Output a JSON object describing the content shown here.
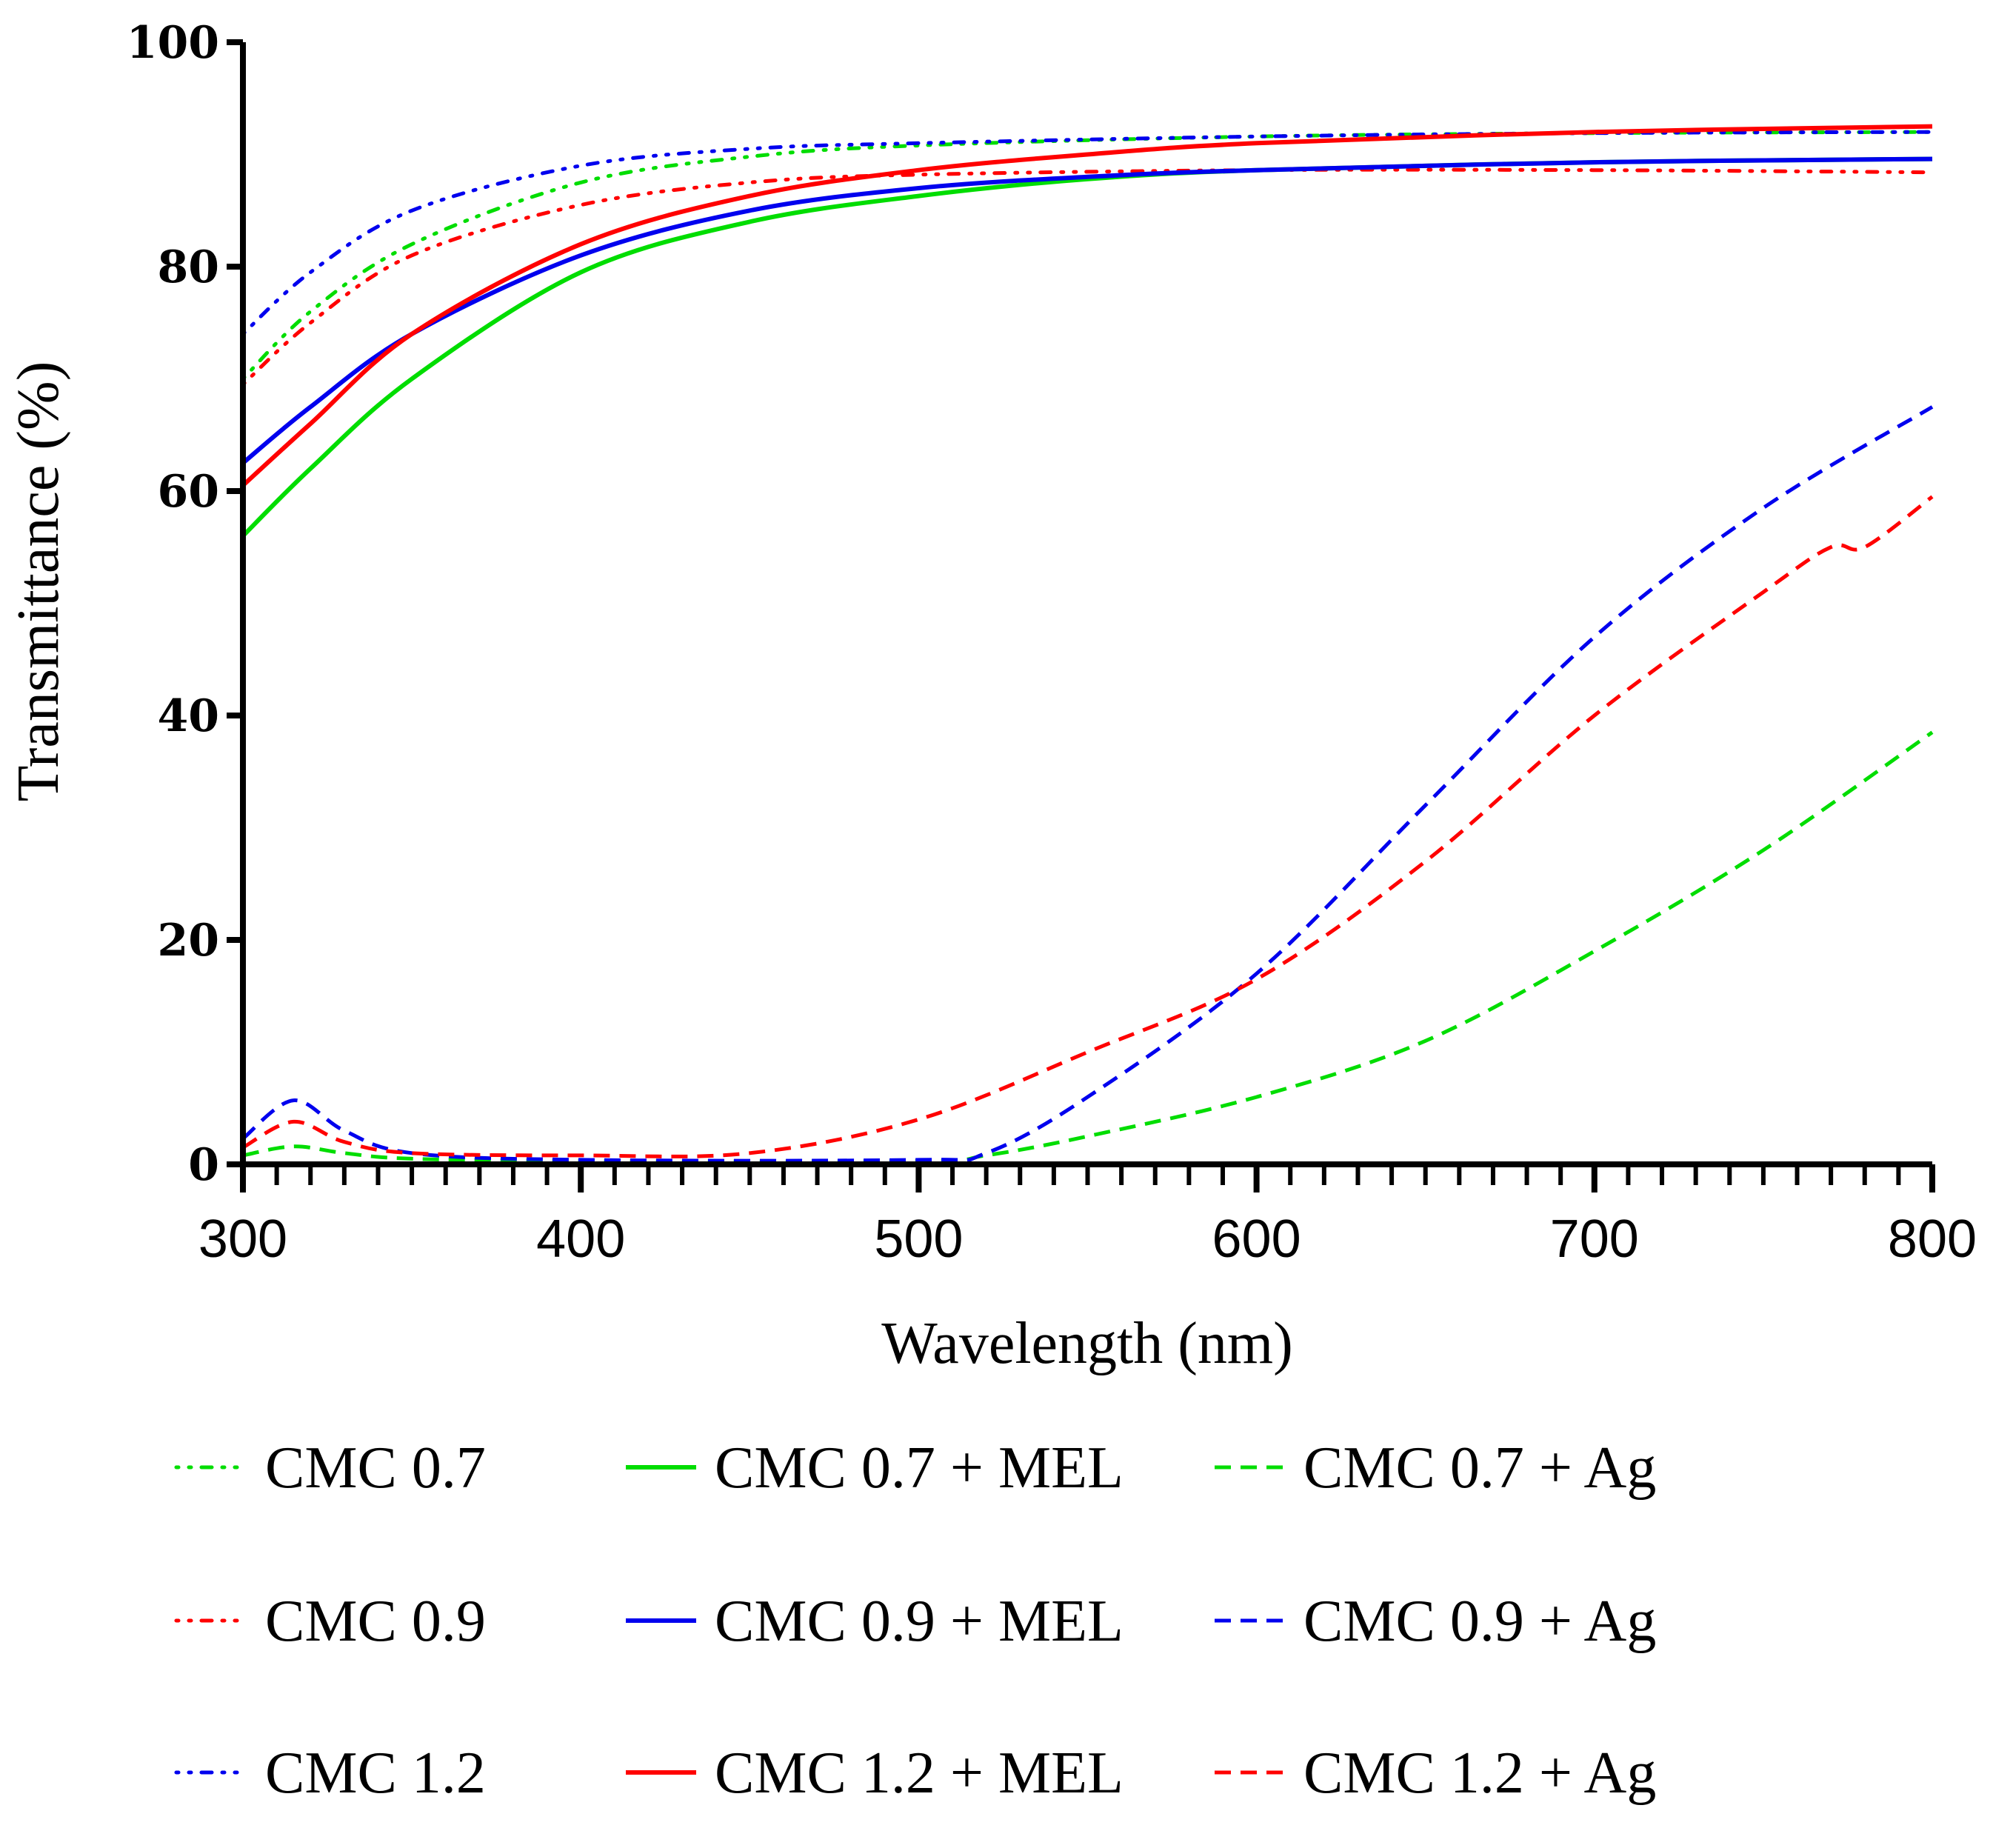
{
  "chart_data": {
    "type": "line",
    "title": "",
    "xlabel": "Wavelength (nm)",
    "ylabel": "Transmittance (%)",
    "xlim": [
      300,
      800
    ],
    "ylim": [
      0,
      100
    ],
    "x_ticks": [
      300,
      400,
      500,
      600,
      700,
      800
    ],
    "y_ticks": [
      0,
      20,
      40,
      60,
      80,
      100
    ],
    "grid": false,
    "legend_position": "bottom",
    "series": [
      {
        "name": "CMC 0.7",
        "color": "#00dd00",
        "style": "dot",
        "points": [
          [
            300,
            70
          ],
          [
            320,
            76
          ],
          [
            350,
            82
          ],
          [
            400,
            87.5
          ],
          [
            450,
            89.8
          ],
          [
            500,
            90.8
          ],
          [
            600,
            91.6
          ],
          [
            700,
            91.9
          ],
          [
            800,
            92.0
          ]
        ]
      },
      {
        "name": "CMC 0.9",
        "color": "#ff0000",
        "style": "dot",
        "points": [
          [
            300,
            69.5
          ],
          [
            320,
            75
          ],
          [
            350,
            81
          ],
          [
            400,
            85.5
          ],
          [
            450,
            87.5
          ],
          [
            500,
            88.2
          ],
          [
            600,
            88.6
          ],
          [
            700,
            88.6
          ],
          [
            800,
            88.4
          ]
        ]
      },
      {
        "name": "CMC 1.2",
        "color": "#0000ee",
        "style": "dot",
        "points": [
          [
            300,
            74
          ],
          [
            320,
            79.5
          ],
          [
            350,
            85
          ],
          [
            400,
            89
          ],
          [
            450,
            90.5
          ],
          [
            500,
            91
          ],
          [
            600,
            91.6
          ],
          [
            700,
            91.9
          ],
          [
            800,
            92.0
          ]
        ]
      },
      {
        "name": "CMC 0.7 + MEL",
        "color": "#00dd00",
        "style": "solid",
        "points": [
          [
            300,
            56
          ],
          [
            320,
            62
          ],
          [
            350,
            70
          ],
          [
            400,
            79.5
          ],
          [
            450,
            84
          ],
          [
            500,
            86.3
          ],
          [
            550,
            87.8
          ],
          [
            600,
            88.6
          ],
          [
            700,
            89.3
          ],
          [
            800,
            89.6
          ]
        ]
      },
      {
        "name": "CMC 0.9 + MEL",
        "color": "#0000ee",
        "style": "solid",
        "points": [
          [
            300,
            62.5
          ],
          [
            320,
            67.5
          ],
          [
            350,
            74
          ],
          [
            400,
            81
          ],
          [
            450,
            85
          ],
          [
            500,
            87
          ],
          [
            550,
            88
          ],
          [
            600,
            88.6
          ],
          [
            700,
            89.3
          ],
          [
            800,
            89.6
          ]
        ]
      },
      {
        "name": "CMC 1.2 + MEL",
        "color": "#ff0000",
        "style": "solid",
        "points": [
          [
            300,
            60.5
          ],
          [
            320,
            66
          ],
          [
            350,
            74
          ],
          [
            400,
            82
          ],
          [
            450,
            86.3
          ],
          [
            500,
            88.6
          ],
          [
            550,
            90
          ],
          [
            600,
            91
          ],
          [
            700,
            92
          ],
          [
            800,
            92.5
          ]
        ]
      },
      {
        "name": "CMC 0.7 + Ag",
        "color": "#00dd00",
        "style": "dash",
        "points": [
          [
            300,
            0.8
          ],
          [
            315,
            1.6
          ],
          [
            330,
            1
          ],
          [
            350,
            0.5
          ],
          [
            400,
            0.3
          ],
          [
            500,
            0.3
          ],
          [
            520,
            0.8
          ],
          [
            550,
            2.5
          ],
          [
            600,
            6
          ],
          [
            650,
            11
          ],
          [
            700,
            19
          ],
          [
            750,
            28
          ],
          [
            800,
            38.5
          ]
        ]
      },
      {
        "name": "CMC 0.9 + Ag",
        "color": "#0000ee",
        "style": "dash",
        "points": [
          [
            300,
            2.3
          ],
          [
            315,
            5.7
          ],
          [
            330,
            3
          ],
          [
            350,
            1
          ],
          [
            400,
            0.4
          ],
          [
            500,
            0.4
          ],
          [
            520,
            1
          ],
          [
            550,
            6
          ],
          [
            600,
            17
          ],
          [
            650,
            32
          ],
          [
            700,
            47
          ],
          [
            750,
            58.5
          ],
          [
            800,
            67.5
          ]
        ]
      },
      {
        "name": "CMC 1.2 + Ag",
        "color": "#ff0000",
        "style": "dash",
        "points": [
          [
            300,
            1.5
          ],
          [
            315,
            3.8
          ],
          [
            330,
            2
          ],
          [
            350,
            1
          ],
          [
            400,
            0.8
          ],
          [
            450,
            1
          ],
          [
            500,
            4
          ],
          [
            550,
            10
          ],
          [
            600,
            16.5
          ],
          [
            650,
            27
          ],
          [
            700,
            40
          ],
          [
            750,
            51
          ],
          [
            770,
            55
          ],
          [
            780,
            55
          ],
          [
            800,
            59.5
          ]
        ]
      }
    ]
  }
}
